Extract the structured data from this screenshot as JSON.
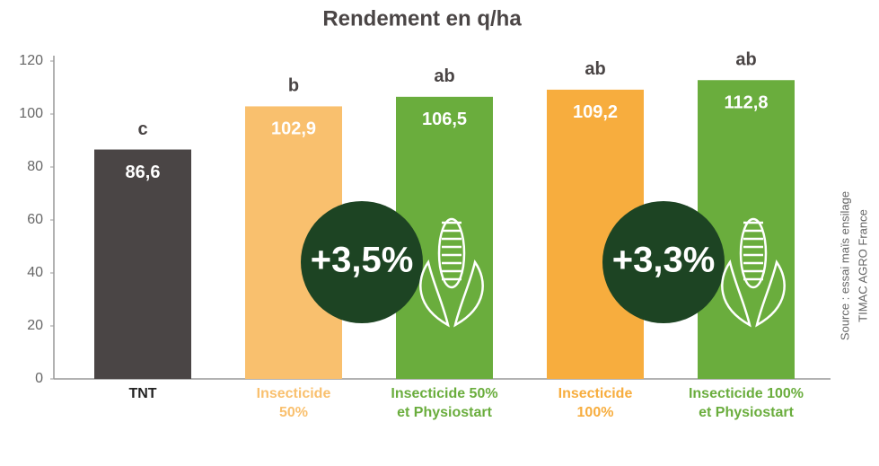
{
  "chart_data": {
    "type": "bar",
    "title": "Rendement en q/ha",
    "categories": [
      "TNT",
      "Insecticide\n50%",
      "Insecticide 50%\net Physiostart",
      "Insecticide\n100%",
      "Insecticide 100%\net Physiostart"
    ],
    "values": [
      86.6,
      102.9,
      106.5,
      109.2,
      112.8
    ],
    "value_labels": [
      "86,6",
      "102,9",
      "106,5",
      "109,2",
      "112,8"
    ],
    "significance_letters": [
      "c",
      "b",
      "ab",
      "ab",
      "ab"
    ],
    "colors": [
      "#4a4545",
      "#f9c06e",
      "#6aad3d",
      "#f7ad3e",
      "#6aad3d"
    ],
    "ylim": [
      0,
      120
    ],
    "yticks": [
      0,
      20,
      40,
      60,
      80,
      100,
      120
    ],
    "grid": false,
    "annotations": [
      "+3,5%",
      "+3,3%"
    ],
    "source": [
      "Source : essai maïs ensilage",
      "TIMAC AGRO France"
    ]
  }
}
